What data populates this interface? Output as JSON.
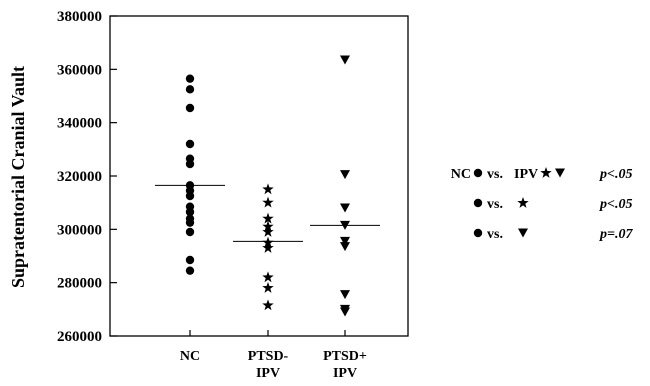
{
  "chart_data": {
    "type": "scatter",
    "title": "",
    "xlabel": "",
    "ylabel": "Supratentorial Cranial Vault",
    "ylim": [
      260000,
      380000
    ],
    "yticks": [
      260000,
      280000,
      300000,
      320000,
      340000,
      360000,
      380000
    ],
    "categories": [
      "NC",
      "PTSD-\nIPV",
      "PTSD+\nIPV"
    ],
    "grid": false,
    "legend_placement": "right",
    "series": [
      {
        "marker": "circle",
        "category_index": 0,
        "values": [
          356500,
          352500,
          345500,
          332000,
          326500,
          324500,
          316500,
          314500,
          312500,
          308500,
          306500,
          304000,
          302500,
          299000,
          288500,
          284500
        ],
        "mean": 316500
      },
      {
        "marker": "star",
        "category_index": 1,
        "values": [
          315000,
          310000,
          304000,
          301000,
          299000,
          295000,
          293000,
          282000,
          278000,
          271500
        ],
        "mean": 295500
      },
      {
        "marker": "triangle-down",
        "category_index": 2,
        "values": [
          363500,
          320500,
          308000,
          301500,
          295500,
          293500,
          275500,
          270000,
          269000
        ],
        "mean": 301500
      }
    ],
    "legend": [
      {
        "prefix": "NC",
        "vs": "vs.",
        "group": "IPV",
        "markers": [
          "circle",
          "star",
          "triangle-down"
        ],
        "p": "p<.05"
      },
      {
        "prefix": "",
        "vs": "vs.",
        "group": "",
        "markers": [
          "circle",
          "star"
        ],
        "p": "p<.05"
      },
      {
        "prefix": "",
        "vs": "vs.",
        "group": "",
        "markers": [
          "circle",
          "triangle-down"
        ],
        "p": "p=.07"
      }
    ]
  }
}
